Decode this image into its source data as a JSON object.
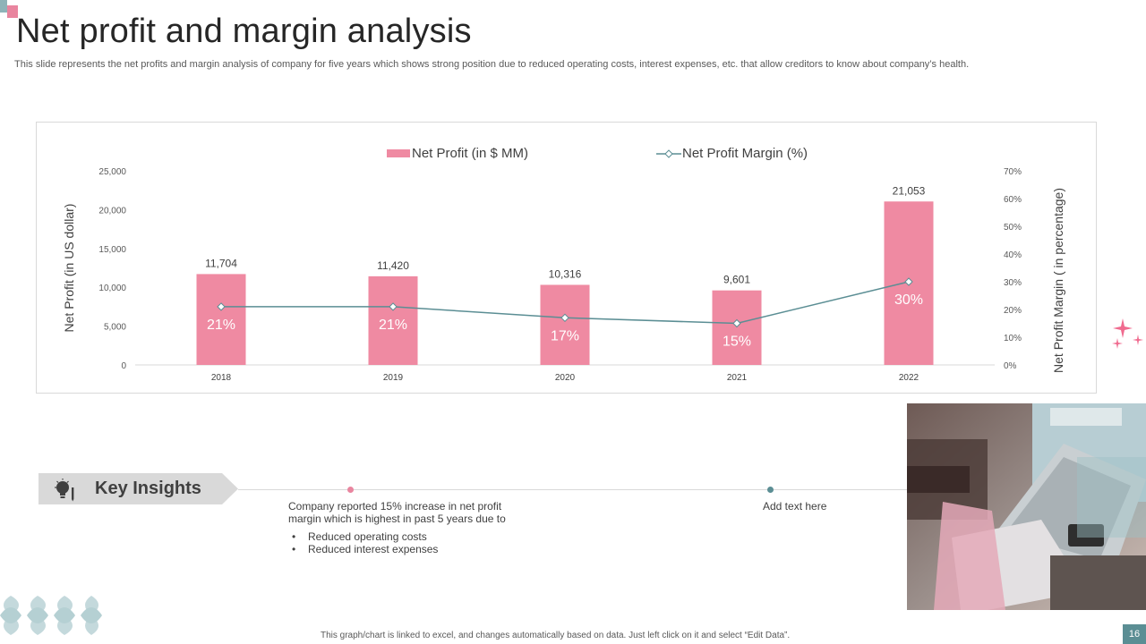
{
  "slide": {
    "title": "Net profit and margin analysis",
    "subtitle": "This slide represents the net profits and margin analysis of company for five years which shows strong position due to reduced operating costs, interest expenses, etc. that allow creditors to know about company’s health.",
    "footer": "This graph/chart is linked to excel, and changes automatically based on data. Just left click on it and select “Edit Data”.",
    "page_number": "16"
  },
  "colors": {
    "bar": "#ef8aa2",
    "line": "#5b8e94",
    "accent_pink": "#e9859f",
    "accent_teal": "#5b8e94"
  },
  "chart_data": {
    "type": "bar",
    "categories": [
      "2018",
      "2019",
      "2020",
      "2021",
      "2022"
    ],
    "series": [
      {
        "name": "Net Profit (in $ MM)",
        "type": "bar",
        "axis": "left",
        "values": [
          11704,
          11420,
          10316,
          9601,
          21053
        ],
        "labels": [
          "11,704",
          "11,420",
          "10,316",
          "9,601",
          "21,053"
        ]
      },
      {
        "name": "Net Profit Margin (%)",
        "type": "line",
        "axis": "right",
        "values": [
          21,
          21,
          17,
          15,
          30
        ],
        "labels": [
          "21%",
          "21%",
          "17%",
          "15%",
          "30%"
        ]
      }
    ],
    "ylabel": "Net Profit (in US dollar)",
    "y2label": "Net Profit Margin  ( in percentage)",
    "ylim": [
      0,
      25000
    ],
    "y2lim": [
      0,
      70
    ],
    "yticks": [
      "0",
      "5,000",
      "10,000",
      "15,000",
      "20,000",
      "25,000"
    ],
    "y2ticks": [
      "0%",
      "10%",
      "20%",
      "30%",
      "40%",
      "50%",
      "60%",
      "70%"
    ],
    "legend": "top",
    "grid": false
  },
  "insights": {
    "label": "Key Insights",
    "text": "Company reported 15% increase in net profit margin which is highest in past 5 years due to",
    "bullets": [
      "Reduced operating costs",
      "Reduced interest expenses"
    ],
    "add_text": "Add text here"
  },
  "icons": {
    "bulb": "lightbulb-icon",
    "sparkle": "sparkle-icon",
    "leaves": "leaf-pattern-icon",
    "photo": "laptop-workspace-photo"
  }
}
